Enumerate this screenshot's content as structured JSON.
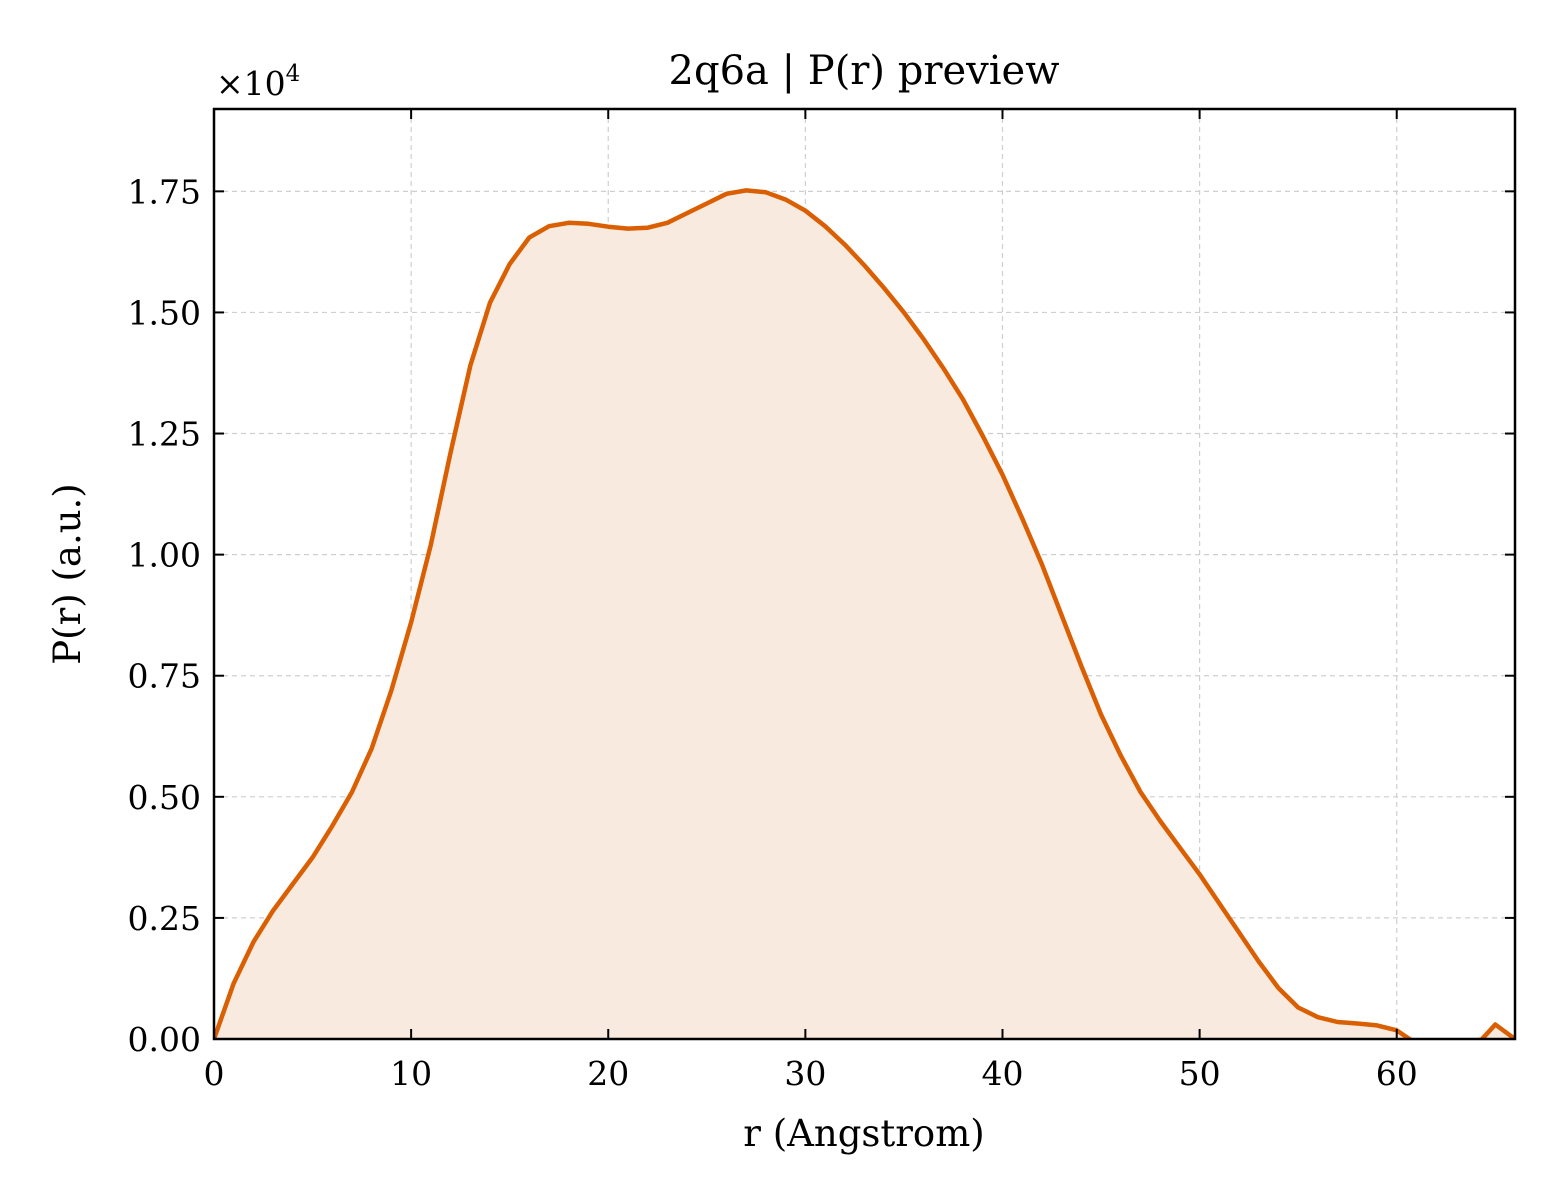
{
  "chart_data": {
    "type": "area",
    "title": "2q6a | P(r) preview",
    "xlabel": "r (Angstrom)",
    "ylabel": "P(r) (a.u.)",
    "y_offset_label": "×10",
    "y_offset_exponent": "4",
    "xlim": [
      0,
      66
    ],
    "ylim": [
      0,
      1.92
    ],
    "grid": true,
    "legend": "none",
    "line_color": "#d95f02",
    "fill_color": "#f9eadf",
    "x_ticks": [
      0,
      10,
      20,
      30,
      40,
      50,
      60
    ],
    "x_tick_labels": [
      "0",
      "10",
      "20",
      "30",
      "40",
      "50",
      "60"
    ],
    "y_ticks": [
      0,
      0.25,
      0.5,
      0.75,
      1.0,
      1.25,
      1.5,
      1.75
    ],
    "y_tick_labels": [
      "0.00",
      "0.25",
      "0.50",
      "0.75",
      "1.00",
      "1.25",
      "1.50",
      "1.75"
    ],
    "series": [
      {
        "x": [
          0,
          1,
          2,
          3,
          4,
          5,
          6,
          7,
          8,
          9,
          10,
          11,
          12,
          13,
          14,
          15,
          16,
          17,
          18,
          19,
          20,
          21,
          22,
          23,
          24,
          25,
          26,
          27,
          28,
          29,
          30,
          31,
          32,
          33,
          34,
          35,
          36,
          37,
          38,
          39,
          40,
          41,
          42,
          43,
          44,
          45,
          46,
          47,
          48,
          49,
          50,
          51,
          52,
          53,
          54,
          55,
          56,
          57,
          58,
          59,
          60,
          61,
          62,
          63,
          64,
          65,
          66
        ],
        "y": [
          0.0,
          0.115,
          0.2,
          0.265,
          0.32,
          0.375,
          0.44,
          0.51,
          0.6,
          0.72,
          0.86,
          1.02,
          1.21,
          1.39,
          1.52,
          1.6,
          1.655,
          1.678,
          1.685,
          1.683,
          1.677,
          1.673,
          1.675,
          1.685,
          1.705,
          1.725,
          1.745,
          1.752,
          1.748,
          1.733,
          1.71,
          1.678,
          1.64,
          1.597,
          1.55,
          1.5,
          1.445,
          1.385,
          1.32,
          1.245,
          1.165,
          1.075,
          0.98,
          0.875,
          0.77,
          0.67,
          0.585,
          0.51,
          0.45,
          0.395,
          0.34,
          0.28,
          0.22,
          0.16,
          0.105,
          0.065,
          0.045,
          0.035,
          0.032,
          0.028,
          0.018,
          -0.01,
          -0.04,
          -0.06,
          -0.015,
          0.03,
          0.0
        ]
      }
    ]
  }
}
